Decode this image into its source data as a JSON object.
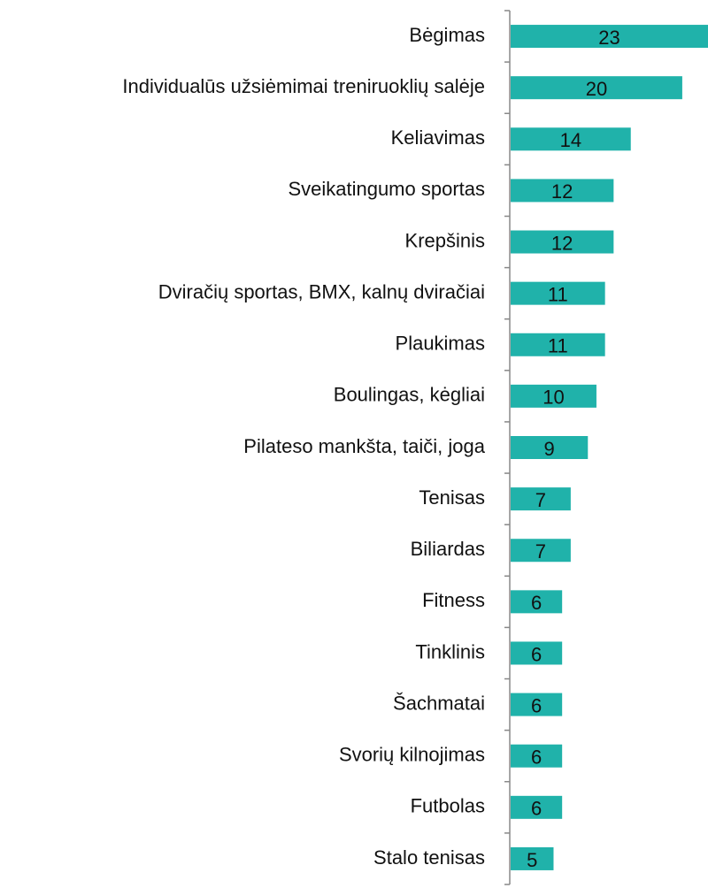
{
  "chart_data": {
    "type": "bar",
    "orientation": "horizontal",
    "categories": [
      "Bėgimas",
      "Individualūs užsiėmimai treniruoklių salėje",
      "Keliavimas",
      "Sveikatingumo sportas",
      "Krepšinis",
      "Dviračių sportas, BMX, kalnų dviračiai",
      "Plaukimas",
      "Boulingas, kėgliai",
      "Pilateso mankšta, taiči, joga",
      "Tenisas",
      "Biliardas",
      "Fitness",
      "Tinklinis",
      "Šachmatai",
      "Svorių kilnojimas",
      "Futbolas",
      "Stalo tenisas"
    ],
    "values": [
      23,
      20,
      14,
      12,
      12,
      11,
      11,
      10,
      9,
      7,
      7,
      6,
      6,
      6,
      6,
      6,
      5
    ],
    "color": "#20b2aa"
  }
}
